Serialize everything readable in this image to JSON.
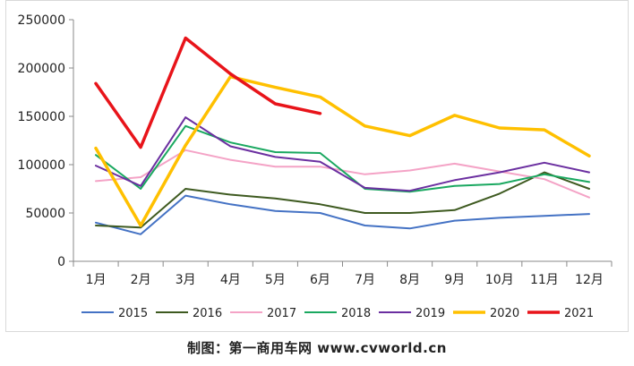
{
  "chart_data": {
    "type": "line",
    "title": "",
    "xlabel": "",
    "ylabel": "",
    "categories": [
      "1月",
      "2月",
      "3月",
      "4月",
      "5月",
      "6月",
      "7月",
      "8月",
      "9月",
      "10月",
      "11月",
      "12月"
    ],
    "ylim": [
      0,
      250000
    ],
    "yticks": [
      0,
      50000,
      100000,
      150000,
      200000,
      250000
    ],
    "grid": false,
    "legend_position": "bottom",
    "series": [
      {
        "name": "2015",
        "color": "#4472c4",
        "values": [
          40000,
          28000,
          68000,
          59000,
          52000,
          50000,
          37000,
          34000,
          42000,
          45000,
          47000,
          49000
        ]
      },
      {
        "name": "2016",
        "color": "#3e5a20",
        "values": [
          37000,
          35000,
          75000,
          69000,
          65000,
          59000,
          50000,
          50000,
          53000,
          70000,
          92000,
          75000
        ]
      },
      {
        "name": "2017",
        "color": "#f4a3c6",
        "values": [
          83000,
          87000,
          115000,
          105000,
          98000,
          98000,
          90000,
          94000,
          101000,
          93000,
          85000,
          66000
        ]
      },
      {
        "name": "2018",
        "color": "#1aa860",
        "values": [
          110000,
          75000,
          140000,
          123000,
          113000,
          112000,
          75000,
          72000,
          78000,
          80000,
          90000,
          82000
        ]
      },
      {
        "name": "2019",
        "color": "#6b2fa0",
        "values": [
          99000,
          78000,
          149000,
          119000,
          108000,
          103000,
          76000,
          73000,
          84000,
          92000,
          102000,
          92000
        ]
      },
      {
        "name": "2020",
        "color": "#ffc000",
        "values": [
          117000,
          37000,
          120000,
          191000,
          180000,
          170000,
          140000,
          130000,
          151000,
          138000,
          136000,
          109000
        ]
      },
      {
        "name": "2021",
        "color": "#e8141a",
        "values": [
          184000,
          118000,
          231000,
          194000,
          163000,
          153000,
          null,
          null,
          null,
          null,
          null,
          null
        ]
      }
    ]
  },
  "footer": {
    "caption": "制图：第一商用车网 www.cvworld.cn"
  }
}
